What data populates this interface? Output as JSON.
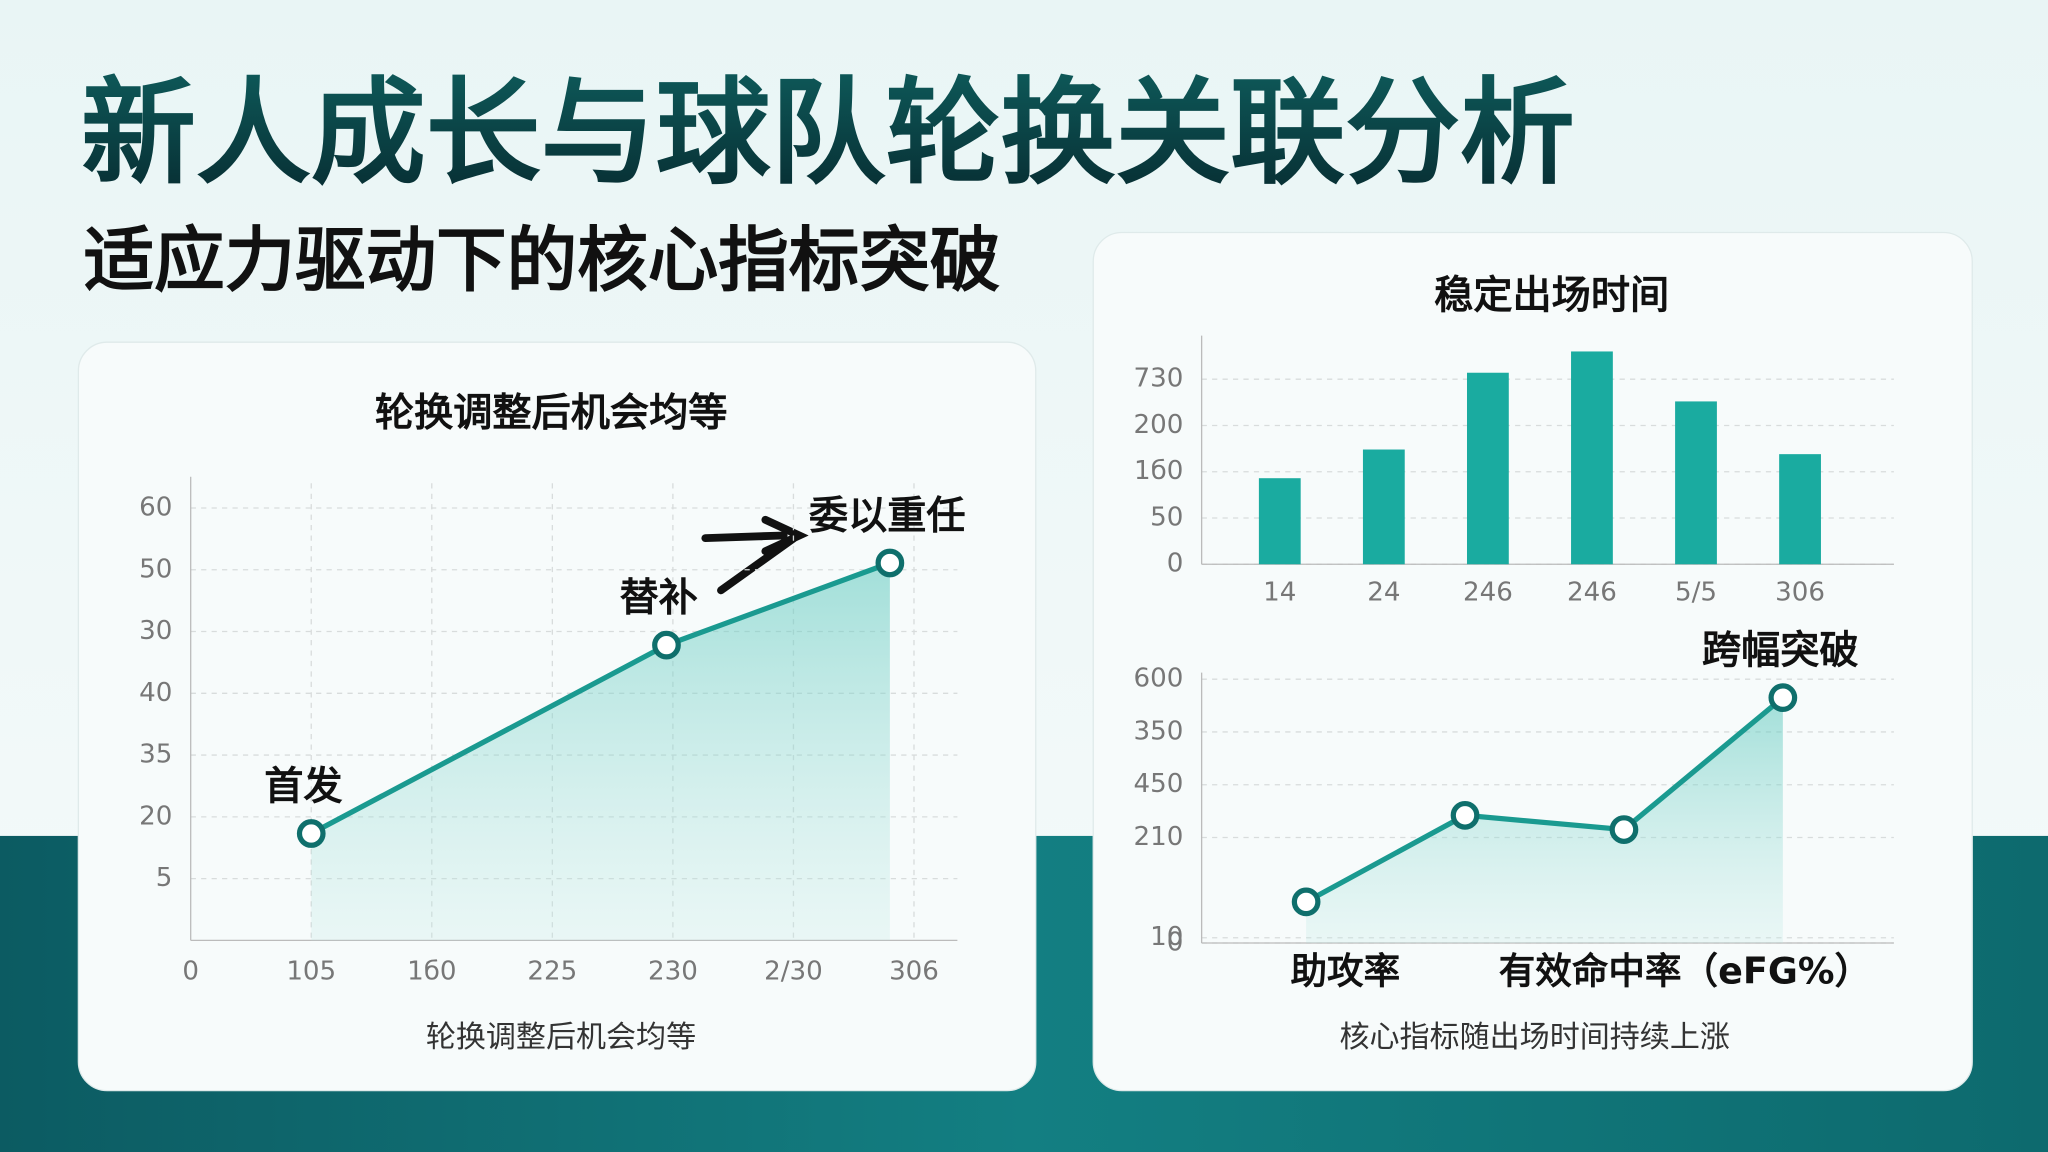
{
  "header": {
    "title": "新人成长与球队轮换关联分析",
    "subtitle": "适应力驱动下的核心指标突破"
  },
  "chart_data": [
    {
      "type": "line",
      "title": "轮换调整后机会均等",
      "xlabel": "轮换调整后机会均等",
      "color": "#1a9a90",
      "x": [
        75,
        296,
        435
      ],
      "values": [
        17.3,
        47.8,
        61.1
      ],
      "point_labels": [
        "首发",
        "替补",
        "委以重任"
      ],
      "xlim": [
        0,
        477
      ],
      "ylim": [
        0,
        74
      ],
      "xticks": [
        0,
        {
          "value": 75,
          "label": "105"
        },
        {
          "value": 150,
          "label": "1б0"
        },
        225,
        {
          "value": 300,
          "label": "230"
        },
        {
          "value": 375,
          "label": "2/30"
        },
        {
          "value": 450,
          "label": "306"
        }
      ],
      "yticks": [
        {
          "value": 10,
          "label": "5"
        },
        20,
        {
          "value": 30,
          "label": "35"
        },
        40,
        {
          "value": 50,
          "label": "30"
        },
        {
          "value": 60,
          "label": "50"
        },
        {
          "value": 70,
          "label": "60"
        }
      ],
      "grid": true
    },
    {
      "type": "bar",
      "title": "稳定出场时间",
      "color": "#1aaba0",
      "categories": [
        "14",
        "24",
        "246",
        "246",
        "5/5",
        "306"
      ],
      "values": [
        93,
        124,
        207,
        230,
        176,
        119
      ],
      "ylim": [
        0,
        240
      ],
      "yticks": [
        0,
        50,
        {
          "value": 100,
          "label": "1б0"
        },
        {
          "value": 150,
          "label": "200"
        },
        {
          "value": 200,
          "label": "730"
        }
      ],
      "grid": true
    },
    {
      "type": "line",
      "title": "核心指标随出场时间持续上涨",
      "color": "#1a9a90",
      "categories": [
        null,
        null,
        null,
        null
      ],
      "values": [
        78,
        242,
        215,
        465
      ],
      "point_labels": [
        null,
        null,
        null,
        "跨幅突破"
      ],
      "annotations": [
        "助攻率",
        "有效命中率（eFG%）"
      ],
      "ylim": [
        0,
        500
      ],
      "yticks": [
        0,
        10,
        {
          "value": 200,
          "label": "210"
        },
        {
          "value": 300,
          "label": "450"
        },
        {
          "value": 400,
          "label": "350"
        },
        {
          "value": 500,
          "label": "600"
        }
      ],
      "grid": true
    }
  ]
}
